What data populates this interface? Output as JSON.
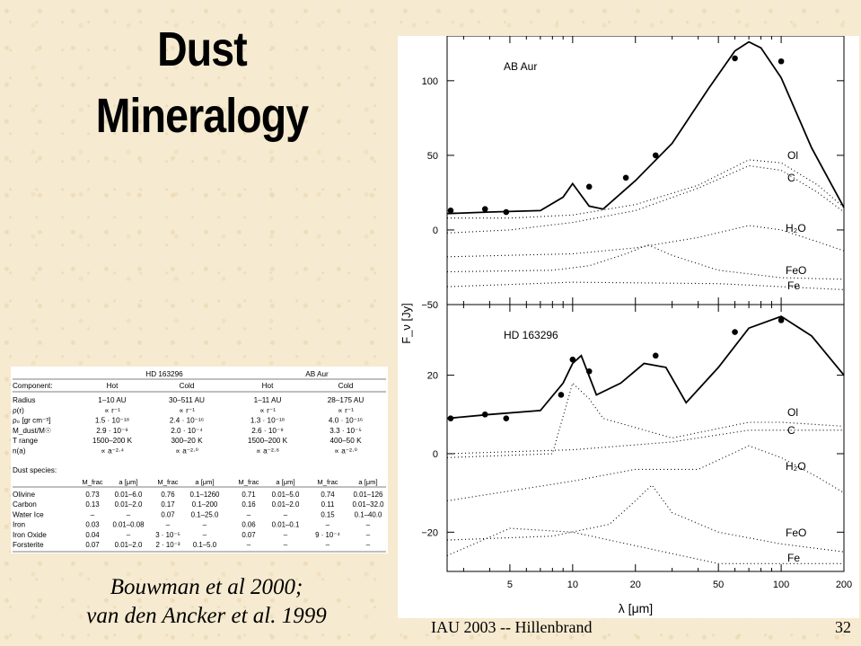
{
  "slide": {
    "title_line1": "Dust",
    "title_line2": "Mineralogy",
    "citation_line1": "Bouwman et al 2000;",
    "citation_line2": "van den Ancker et al. 1999",
    "footer": "IAU 2003 -- Hillenbrand",
    "page_number": "32"
  },
  "table": {
    "group_headers": [
      "HD 163296",
      "AB Aur"
    ],
    "component_label": "Component:",
    "column_labels": [
      "Hot",
      "Cold",
      "Hot",
      "Cold"
    ],
    "rows": [
      {
        "label": "Radius",
        "cells": [
          "1–10 AU",
          "30–511 AU",
          "1–11 AU",
          "28–175 AU"
        ]
      },
      {
        "label": "ρ(r)",
        "cells": [
          "∝ r⁻¹",
          "∝ r⁻¹",
          "∝ r⁻¹",
          "∝ r⁻¹"
        ]
      },
      {
        "label": "ρ₀ [gr cm⁻³]",
        "cells": [
          "1.5 · 10⁻¹⁸",
          "2.4 · 10⁻¹⁶",
          "1.3 · 10⁻¹⁸",
          "4.0 · 10⁻¹⁶"
        ]
      },
      {
        "label": "M_dust/M☉",
        "cells": [
          "2.9 · 10⁻⁹",
          "2.0 · 10⁻⁴",
          "2.6 · 10⁻⁹",
          "3.3 · 10⁻⁵"
        ]
      },
      {
        "label": "T range",
        "cells": [
          "1500–200 K",
          "300–20 K",
          "1500–200 K",
          "400–50 K"
        ]
      },
      {
        "label": "n(a)",
        "cells": [
          "∝ a⁻²·⁴",
          "∝ a⁻²·⁰",
          "∝ a⁻²·⁸",
          "∝ a⁻²·⁰"
        ]
      }
    ],
    "dust_label": "Dust species:",
    "dust_headers": [
      "M_frac",
      "a [μm]",
      "M_frac",
      "a [μm]",
      "M_frac",
      "a [μm]",
      "M_frac",
      "a [μm]"
    ],
    "dust_rows": [
      {
        "label": "Olivine",
        "cells": [
          "0.73",
          "0.01–6.0",
          "0.76",
          "0.1–1260",
          "0.71",
          "0.01–5.0",
          "0.74",
          "0.01–126"
        ]
      },
      {
        "label": "Carbon",
        "cells": [
          "0.13",
          "0.01–2.0",
          "0.17",
          "0.1–200",
          "0.16",
          "0.01–2.0",
          "0.11",
          "0.01–32.0"
        ]
      },
      {
        "label": "Water Ice",
        "cells": [
          "–",
          "–",
          "0.07",
          "0.1–25.0",
          "–",
          "–",
          "0.15",
          "0.1–40.0"
        ]
      },
      {
        "label": "Iron",
        "cells": [
          "0.03",
          "0.01–0.08",
          "–",
          "–",
          "0.06",
          "0.01–0.1",
          "–",
          "–"
        ]
      },
      {
        "label": "Iron Oxide",
        "cells": [
          "0.04",
          "–",
          "3 · 10⁻⁵",
          "–",
          "0.07",
          "–",
          "9 · 10⁻⁴",
          "–"
        ]
      },
      {
        "label": "Forsterite",
        "cells": [
          "0.07",
          "0.01–2.0",
          "2 · 10⁻³",
          "0.1–5.0",
          "–",
          "–",
          "–",
          "–"
        ]
      }
    ]
  },
  "chart_data": [
    {
      "type": "line",
      "panel": "top",
      "annotation": "AB Aur",
      "xscale": "log",
      "xlim": [
        2.5,
        200
      ],
      "ylim": [
        -50,
        130
      ],
      "yticks": [
        -50,
        0,
        50,
        100
      ],
      "ylabel": "F_ν [Jy]",
      "photometry": {
        "x": [
          2.6,
          3.8,
          4.8,
          12.0,
          18.0,
          25.0,
          60.0,
          100.0
        ],
        "y": [
          13,
          14,
          12,
          29,
          35,
          50,
          115,
          113
        ]
      },
      "model_total": {
        "x": [
          2.5,
          4,
          7,
          9,
          10,
          12,
          14,
          20,
          30,
          45,
          60,
          70,
          80,
          100,
          140,
          200
        ],
        "y": [
          11,
          12,
          13,
          22,
          31,
          16,
          14,
          33,
          58,
          95,
          120,
          126,
          122,
          102,
          55,
          15
        ]
      },
      "components": [
        {
          "name": "Ol",
          "x": [
            2.5,
            5,
            10,
            20,
            40,
            70,
            100,
            150,
            200
          ],
          "y": [
            8,
            8,
            10,
            17,
            30,
            47,
            45,
            30,
            15
          ]
        },
        {
          "name": "C",
          "x": [
            2.5,
            5,
            10,
            20,
            40,
            70,
            100,
            150,
            200
          ],
          "y": [
            -2,
            0,
            5,
            13,
            28,
            43,
            40,
            25,
            12
          ]
        },
        {
          "name": "H₂O",
          "x": [
            2.5,
            10,
            20,
            40,
            70,
            100,
            150,
            200
          ],
          "y": [
            -18,
            -16,
            -12,
            -5,
            3,
            0,
            -8,
            -14
          ]
        },
        {
          "name": "FeO",
          "x": [
            2.5,
            8,
            12,
            18,
            23,
            30,
            50,
            100,
            200
          ],
          "y": [
            -28,
            -27,
            -24,
            -16,
            -10,
            -17,
            -27,
            -32,
            -33
          ]
        },
        {
          "name": "Fe",
          "x": [
            2.5,
            10,
            50,
            200
          ],
          "y": [
            -38,
            -35,
            -36,
            -40
          ]
        }
      ],
      "component_offsets": {
        "x": [
          2.5,
          200
        ],
        "y": [
          -17,
          -42
        ]
      }
    },
    {
      "type": "line",
      "panel": "bottom",
      "annotation": "HD 163296",
      "xscale": "log",
      "xlim": [
        2.5,
        200
      ],
      "ylim": [
        -30,
        38
      ],
      "yticks": [
        -20,
        0,
        20
      ],
      "xticks": [
        5,
        10,
        20,
        50,
        100,
        200
      ],
      "xlabel": "λ [μm]",
      "photometry": {
        "x": [
          2.6,
          3.8,
          4.8,
          8.8,
          10.0,
          12.0,
          25.0,
          60.0,
          100.0
        ],
        "y": [
          9,
          10,
          9,
          15,
          24,
          21,
          25,
          31,
          34
        ]
      },
      "model_total": {
        "x": [
          2.5,
          4,
          7,
          9,
          10,
          11,
          13,
          17,
          22,
          28,
          35,
          50,
          70,
          100,
          140,
          200
        ],
        "y": [
          9,
          10,
          11,
          18,
          23,
          25,
          15,
          18,
          23,
          22,
          13,
          22,
          32,
          35,
          30,
          20
        ]
      },
      "components": [
        {
          "name": "Ol",
          "x": [
            2.5,
            8,
            10,
            12,
            14,
            30,
            70,
            100,
            200
          ],
          "y": [
            -1,
            0,
            18,
            14,
            9,
            4,
            8,
            8,
            7
          ]
        },
        {
          "name": "C",
          "x": [
            2.5,
            10,
            30,
            70,
            100,
            200
          ],
          "y": [
            0,
            1,
            3,
            6,
            6,
            6
          ]
        },
        {
          "name": "H₂O",
          "x": [
            2.5,
            10,
            20,
            40,
            70,
            100,
            150,
            200
          ],
          "y": [
            -12,
            -7,
            -4,
            -4,
            2,
            -1,
            -6,
            -10
          ]
        },
        {
          "name": "FeO",
          "x": [
            2.5,
            8,
            15,
            20,
            24,
            30,
            50,
            100,
            200
          ],
          "y": [
            -22,
            -21,
            -18,
            -12,
            -8,
            -15,
            -20,
            -23,
            -25
          ]
        },
        {
          "name": "Fe",
          "x": [
            2.5,
            5,
            10,
            50,
            200
          ],
          "y": [
            -26,
            -19,
            -20,
            -28,
            -28
          ]
        }
      ]
    }
  ]
}
